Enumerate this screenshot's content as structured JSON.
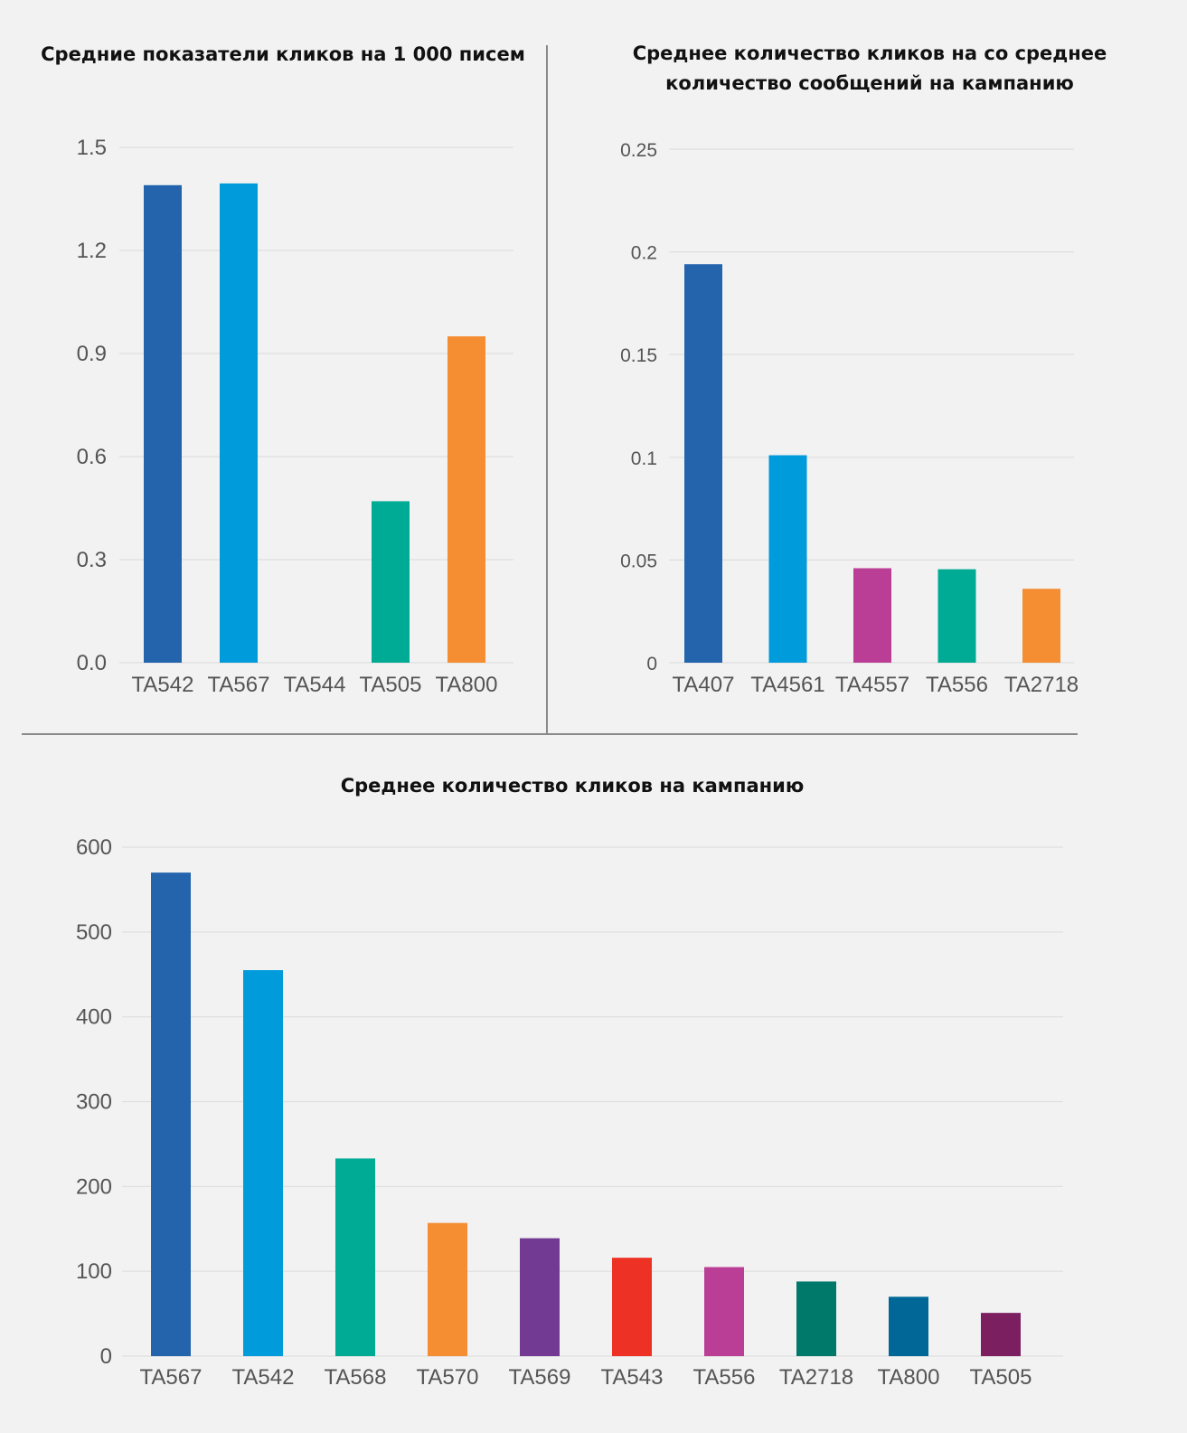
{
  "chart_data": [
    {
      "type": "bar",
      "title": "Средние показатели кликов на 1 000 писем",
      "categories": [
        "TA542",
        "TA567",
        "TA544",
        "TA505",
        "TA800"
      ],
      "values": [
        1.39,
        1.395,
        0,
        0.47,
        0.95
      ],
      "colors": [
        "#2364ad",
        "#009bdb",
        "#ffffff",
        "#00ab96",
        "#f58e33"
      ],
      "yticks": [
        "0.0",
        "0.3",
        "0.6",
        "0.9",
        "1.2",
        "1.5"
      ],
      "ylim": [
        0,
        1.5
      ],
      "grid": true
    },
    {
      "type": "bar",
      "title": [
        "Среднее количество кликов на со среднее",
        "количество сообщений на кампанию"
      ],
      "categories": [
        "TA407",
        "TA4561",
        "TA4557",
        "TA556",
        "TA2718"
      ],
      "values": [
        0.194,
        0.101,
        0.046,
        0.0455,
        0.036
      ],
      "colors": [
        "#2364ad",
        "#009bdb",
        "#bb3e96",
        "#00ab96",
        "#f58e33"
      ],
      "yticks": [
        "0",
        "0.05",
        "0.1",
        "0.15",
        "0.2",
        "0.25"
      ],
      "ylim": [
        0,
        0.25
      ],
      "grid": true
    },
    {
      "type": "bar",
      "title": "Среднее количество кликов на кампанию",
      "categories": [
        "TA567",
        "TA542",
        "TA568",
        "TA570",
        "TA569",
        "TA543",
        "TA556",
        "TA2718",
        "TA800",
        "TA505"
      ],
      "values": [
        570,
        455,
        233,
        157,
        139,
        116,
        105,
        88,
        70,
        51
      ],
      "colors": [
        "#2364ad",
        "#009bdb",
        "#00ab96",
        "#f58e33",
        "#733a93",
        "#ee3125",
        "#bb3e96",
        "#00796b",
        "#006797",
        "#7b1f61"
      ],
      "yticks": [
        "0",
        "100",
        "200",
        "300",
        "400",
        "500",
        "600"
      ],
      "ylim": [
        0,
        600
      ],
      "grid": true
    }
  ]
}
